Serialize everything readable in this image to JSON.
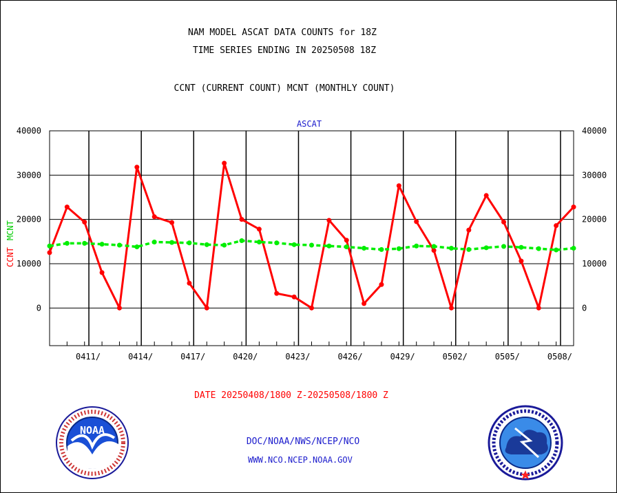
{
  "header": {
    "title_line1": "NAM MODEL ASCAT DATA COUNTS for 18Z",
    "title_line2": "TIME SERIES ENDING IN 20250508 18Z",
    "subtitle": "CCNT (CURRENT COUNT) MCNT (MONTHLY COUNT)"
  },
  "footer": {
    "date_range": "DATE 20250408/1800 Z-20250508/1800 Z",
    "org": "DOC/NOAA/NWS/NCEP/NCO",
    "url": "WWW.NCO.NCEP.NOAA.GOV",
    "noaa_logo_text": "NOAA",
    "nws_logo_text": "NATIONAL WEATHER SERVICE"
  },
  "colors": {
    "ccnt": "#ff0000",
    "mcnt": "#00ee00",
    "label_blue": "#1a1acc",
    "date_red": "#ff0000"
  },
  "chart_data": {
    "type": "line",
    "title": "ASCAT",
    "ylabel_left": [
      "CCNT",
      "MCNT"
    ],
    "ylim": [
      -8500,
      40000
    ],
    "yticks": [
      0,
      10000,
      20000,
      30000,
      40000
    ],
    "xlim": [
      0,
      30
    ],
    "xtick_labels": [
      {
        "label": "0411/",
        "x": 3
      },
      {
        "label": "0414/",
        "x": 6
      },
      {
        "label": "0417/",
        "x": 9
      },
      {
        "label": "0420/",
        "x": 12
      },
      {
        "label": "0423/",
        "x": 15
      },
      {
        "label": "0426/",
        "x": 18
      },
      {
        "label": "0429/",
        "x": 21
      },
      {
        "label": "0502/",
        "x": 24
      },
      {
        "label": "0505/",
        "x": 27
      },
      {
        "label": "0508/",
        "x": 30
      }
    ],
    "vgrid_days": [
      2.25,
      5.25,
      8.25,
      11.25,
      14.25,
      17.25,
      20.25,
      23.25,
      26.25,
      29.25
    ],
    "grid": true,
    "series": [
      {
        "name": "CCNT",
        "color": "#ff0000",
        "values": [
          12500,
          22800,
          19400,
          8000,
          0,
          31800,
          20600,
          19300,
          5600,
          0,
          32700,
          20000,
          17800,
          3300,
          2500,
          0,
          19800,
          15300,
          1000,
          5300,
          27600,
          19500,
          13000,
          0,
          17600,
          25400,
          19400,
          10600,
          0,
          18600,
          22800
        ]
      },
      {
        "name": "MCNT",
        "color": "#00ee00",
        "values": [
          14000,
          14600,
          14600,
          14400,
          14200,
          13800,
          14900,
          14800,
          14700,
          14300,
          14200,
          15200,
          14900,
          14700,
          14300,
          14200,
          14000,
          13800,
          13500,
          13200,
          13400,
          14000,
          13900,
          13500,
          13200,
          13600,
          13900,
          13700,
          13400,
          13100,
          13500
        ]
      }
    ]
  }
}
